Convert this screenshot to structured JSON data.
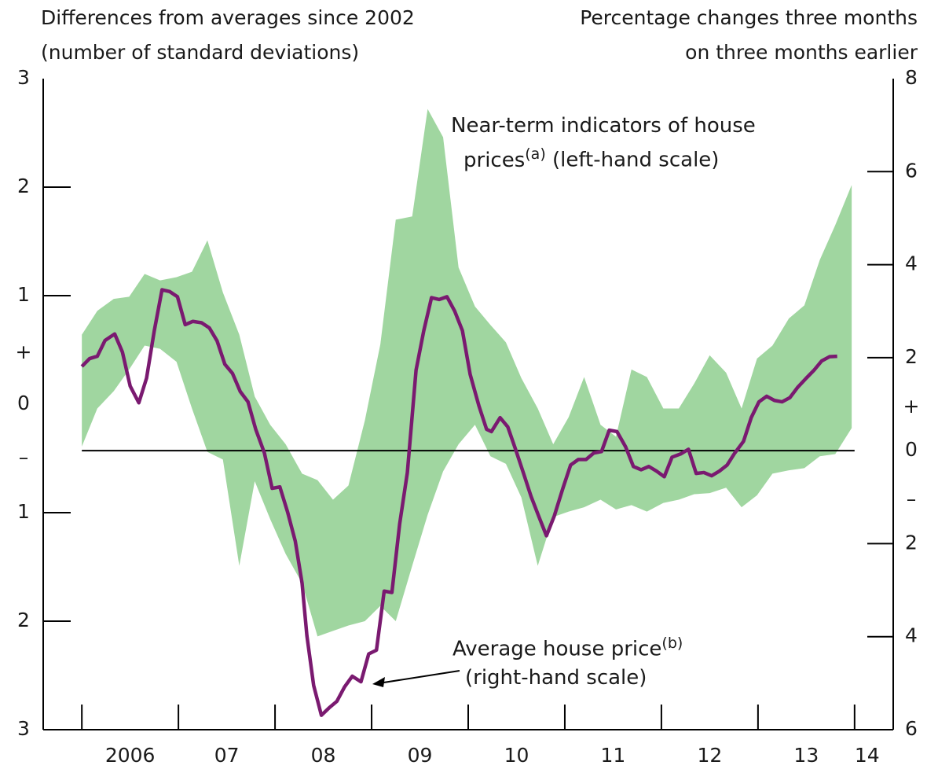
{
  "chart_data": {
    "type": "band-line",
    "left_axis_title": [
      "Differences from averages since 2002",
      "(number of standard deviations)"
    ],
    "right_axis_title": [
      "Percentage changes three months",
      "on three months earlier"
    ],
    "xlim": [
      2005.6,
      2014.4
    ],
    "xticks": [
      2006,
      2007,
      2008,
      2009,
      2010,
      2011,
      2012,
      2013,
      2014
    ],
    "xtick_labels": [
      {
        "value": 2006.5,
        "label": "2006"
      },
      {
        "value": 2007.5,
        "label": "07"
      },
      {
        "value": 2008.5,
        "label": "08"
      },
      {
        "value": 2009.5,
        "label": "09"
      },
      {
        "value": 2010.5,
        "label": "10"
      },
      {
        "value": 2011.5,
        "label": "11"
      },
      {
        "value": 2012.5,
        "label": "12"
      },
      {
        "value": 2013.5,
        "label": "13"
      },
      {
        "value": 2014.13,
        "label": "14"
      }
    ],
    "ylim": [
      -3,
      3
    ],
    "yticks": [
      3,
      2,
      1,
      0,
      {
        "value": -1,
        "label": "1"
      },
      {
        "value": -2,
        "label": "2"
      },
      {
        "value": -3,
        "label": "3"
      }
    ],
    "y2lim": [
      -6,
      8
    ],
    "y2ticks": [
      8,
      6,
      4,
      2,
      0,
      {
        "value": -2,
        "label": "2"
      },
      {
        "value": -4,
        "label": "4"
      },
      {
        "value": -6,
        "label": "6"
      }
    ],
    "sign_labels": {
      "left": [
        "+",
        "–"
      ],
      "right": [
        "+",
        "–"
      ]
    },
    "band": {
      "label_lines": [
        "Near-term indicators of house",
        "prices"
      ],
      "note_ref": "(a)",
      "scale_note": "(left-hand scale)",
      "color": "#a0d6a0",
      "x": [
        2006,
        2006.16,
        2006.33,
        2006.49,
        2006.65,
        2006.81,
        2006.98,
        2007.14,
        2007.3,
        2007.46,
        2007.63,
        2007.79,
        2007.95,
        2008.11,
        2008.28,
        2008.44,
        2008.6,
        2008.76,
        2008.93,
        2009.09,
        2009.25,
        2009.42,
        2009.58,
        2009.74,
        2009.9,
        2010.07,
        2010.23,
        2010.39,
        2010.55,
        2010.72,
        2010.88,
        2011.04,
        2011.2,
        2011.37,
        2011.53,
        2011.69,
        2011.85,
        2012.02,
        2012.18,
        2012.34,
        2012.5,
        2012.67,
        2012.83,
        2012.99,
        2013.15,
        2013.32,
        2013.48,
        2013.64,
        2013.8,
        2013.97
      ],
      "upper": [
        0.64,
        0.86,
        0.97,
        0.99,
        1.2,
        1.14,
        1.17,
        1.22,
        1.51,
        1.03,
        0.64,
        0.07,
        -0.19,
        -0.37,
        -0.64,
        -0.7,
        -0.88,
        -0.75,
        -0.15,
        0.55,
        1.7,
        1.73,
        2.72,
        2.46,
        1.26,
        0.9,
        0.73,
        0.57,
        0.24,
        -0.04,
        -0.37,
        -0.12,
        0.25,
        -0.19,
        -0.3,
        0.32,
        0.25,
        -0.04,
        -0.04,
        0.19,
        0.45,
        0.29,
        -0.04,
        0.42,
        0.54,
        0.79,
        0.91,
        1.33,
        1.65,
        2.02
      ],
      "lower": [
        -0.39,
        -0.04,
        0.12,
        0.32,
        0.54,
        0.51,
        0.39,
        -0.04,
        -0.44,
        -0.51,
        -1.49,
        -0.71,
        -1.06,
        -1.38,
        -1.65,
        -2.14,
        -2.09,
        -2.04,
        -2.0,
        -1.86,
        -2.0,
        -1.49,
        -1.02,
        -0.62,
        -0.37,
        -0.19,
        -0.48,
        -0.55,
        -0.86,
        -1.49,
        -1.04,
        -0.99,
        -0.95,
        -0.88,
        -0.97,
        -0.93,
        -0.99,
        -0.91,
        -0.88,
        -0.83,
        -0.82,
        -0.77,
        -0.95,
        -0.84,
        -0.64,
        -0.61,
        -0.59,
        -0.48,
        -0.46,
        -0.22
      ]
    },
    "line": {
      "name": "Average house price",
      "note_ref": "(b)",
      "scale_note": "(right-hand scale)",
      "color": "#7a1a70",
      "axis": "y2",
      "x": [
        2006,
        2006.08,
        2006.16,
        2006.24,
        2006.34,
        2006.42,
        2006.5,
        2006.59,
        2006.67,
        2006.75,
        2006.83,
        2006.91,
        2006.99,
        2007.07,
        2007.15,
        2007.24,
        2007.32,
        2007.4,
        2007.48,
        2007.56,
        2007.64,
        2007.72,
        2007.8,
        2007.89,
        2007.97,
        2008.05,
        2008.13,
        2008.21,
        2008.28,
        2008.33,
        2008.4,
        2008.48,
        2008.56,
        2008.64,
        2008.72,
        2008.8,
        2008.89,
        2008.97,
        2009.05,
        2009.13,
        2009.21,
        2009.29,
        2009.37,
        2009.46,
        2009.54,
        2009.62,
        2009.7,
        2009.78,
        2009.86,
        2009.94,
        2010.02,
        2010.11,
        2010.19,
        2010.24,
        2010.33,
        2010.41,
        2010.49,
        2010.57,
        2010.65,
        2010.73,
        2010.81,
        2010.89,
        2010.98,
        2011.06,
        2011.14,
        2011.22,
        2011.3,
        2011.38,
        2011.46,
        2011.54,
        2011.63,
        2011.71,
        2011.79,
        2011.87,
        2011.95,
        2012.03,
        2012.11,
        2012.2,
        2012.28,
        2012.36,
        2012.44,
        2012.52,
        2012.6,
        2012.68,
        2012.76,
        2012.85,
        2012.93,
        2013.01,
        2013.09,
        2013.17,
        2013.25,
        2013.33,
        2013.41,
        2013.5,
        2013.58,
        2013.66,
        2013.74,
        2013.82
      ],
      "values": [
        1.81,
        1.98,
        2.03,
        2.37,
        2.51,
        2.12,
        1.39,
        1.03,
        1.56,
        2.58,
        3.46,
        3.42,
        3.31,
        2.71,
        2.78,
        2.75,
        2.64,
        2.36,
        1.86,
        1.66,
        1.27,
        1.05,
        0.46,
        -0.05,
        -0.81,
        -0.78,
        -1.32,
        -1.95,
        -2.85,
        -3.98,
        -5.05,
        -5.69,
        -5.53,
        -5.39,
        -5.08,
        -4.85,
        -4.97,
        -4.37,
        -4.29,
        -3.02,
        -3.05,
        -1.58,
        -0.47,
        1.73,
        2.58,
        3.29,
        3.25,
        3.31,
        3.0,
        2.58,
        1.64,
        0.97,
        0.46,
        0.41,
        0.71,
        0.51,
        0.03,
        -0.47,
        -0.98,
        -1.41,
        -1.83,
        -1.41,
        -0.81,
        -0.31,
        -0.19,
        -0.19,
        -0.05,
        -0.02,
        0.44,
        0.41,
        0.08,
        -0.34,
        -0.41,
        -0.34,
        -0.44,
        -0.56,
        -0.14,
        -0.07,
        0.03,
        -0.49,
        -0.47,
        -0.54,
        -0.44,
        -0.31,
        -0.05,
        0.2,
        0.71,
        1.05,
        1.17,
        1.08,
        1.05,
        1.14,
        1.36,
        1.56,
        1.73,
        1.93,
        2.02,
        2.03
      ]
    }
  }
}
